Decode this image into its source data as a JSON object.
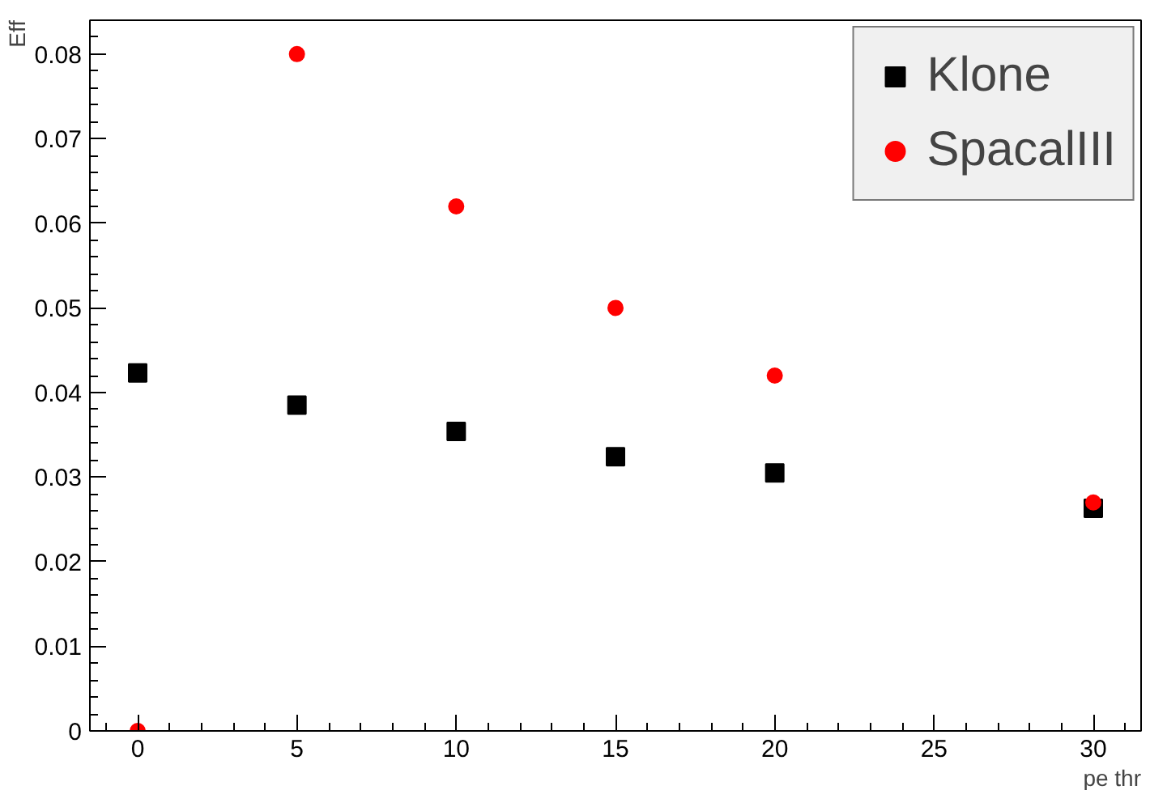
{
  "chart_data": {
    "type": "scatter",
    "xlabel": "pe thr",
    "ylabel": "Eff",
    "x": [
      0,
      5,
      10,
      15,
      20,
      30
    ],
    "series": [
      {
        "name": "Klone",
        "color": "#000000",
        "marker": "square",
        "values": [
          0.0423,
          0.0385,
          0.0354,
          0.0324,
          0.0305,
          0.0263
        ]
      },
      {
        "name": "SpacalIII",
        "color": "#ff0000",
        "marker": "circle",
        "values": [
          0,
          0.08,
          0.062,
          0.05,
          0.042,
          0.027
        ]
      }
    ],
    "xlim": [
      -1.5,
      31.5
    ],
    "ylim": [
      0,
      0.084
    ],
    "xticks": [
      0,
      5,
      10,
      15,
      20,
      25,
      30
    ],
    "yticks": [
      0,
      0.01,
      0.02,
      0.03,
      0.04,
      0.05,
      0.06,
      0.07,
      0.08
    ],
    "grid": false,
    "legend": "top right"
  }
}
